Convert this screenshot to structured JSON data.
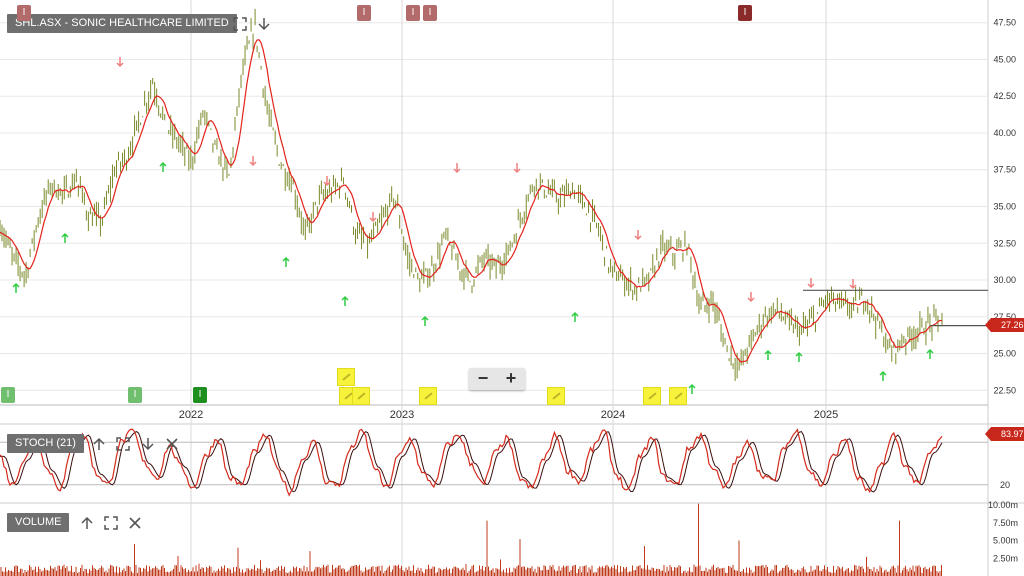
{
  "colors": {
    "candle": "#7a8a2a",
    "ma_line": "#e3231b",
    "stoch_k": "#d32a1b",
    "stoch_d": "#3a1010",
    "volume": "#c0391b",
    "grid": "#e8e8e8",
    "signal_up": "#2ecc40",
    "signal_down": "#f08080"
  },
  "main": {
    "title": "SHL.ASX - SONIC HEALTHCARE LIMITED",
    "price_label": "27.26",
    "zoom_out": "−",
    "zoom_in": "+",
    "marker_text": "I",
    "icons": [
      "expand-icon",
      "download-arrow-icon"
    ]
  },
  "stoch": {
    "title": "STOCH (21)",
    "value_label": "83.97",
    "level_label": "20",
    "icons": [
      "up-arrow-icon",
      "expand-icon",
      "down-arrow-icon",
      "close-icon"
    ]
  },
  "volume": {
    "title": "VOLUME",
    "icons": [
      "up-arrow-icon",
      "expand-icon",
      "close-icon"
    ]
  },
  "chart_data": [
    {
      "type": "line",
      "title": "SHL.ASX - SONIC HEALTHCARE LIMITED",
      "x_ticks": [
        "2022",
        "2023",
        "2024",
        "2025"
      ],
      "y_ticks": [
        "47.50",
        "45.00",
        "42.50",
        "40.00",
        "37.50",
        "35.00",
        "32.50",
        "30.00",
        "27.50",
        "25.00",
        "22.50"
      ],
      "ylim": [
        21.5,
        48.5
      ],
      "series": [
        {
          "values": [
            33.8,
            31.5,
            30.3,
            34.2,
            36.5,
            35.8,
            36.9,
            34.3,
            34.0,
            37.5,
            38.5,
            41.0,
            43.5,
            40.5,
            39.4,
            38.0,
            41.5,
            38.6,
            37.0,
            44.0,
            47.4,
            41.5,
            38.0,
            36.5,
            33.0,
            35.5,
            36.0,
            36.8,
            33.0,
            32.4,
            34.0,
            35.8,
            31.5,
            29.8,
            30.8,
            33.0,
            31.0,
            29.9,
            31.5,
            30.8,
            32.0,
            34.5,
            36.8,
            36.0,
            35.5,
            36.2,
            35.0,
            33.5,
            30.6,
            30.0,
            29.4,
            30.0,
            32.2,
            31.8,
            32.4,
            28.0,
            28.6,
            25.5,
            24.0,
            25.8,
            27.5,
            28.0,
            27.0,
            26.5,
            27.4,
            28.8,
            28.3,
            28.1,
            28.8,
            27.0,
            25.0,
            26.0,
            26.5,
            27.0,
            27.26
          ],
          "grid": true
        }
      ],
      "annotations": {
        "price_label": "27.26"
      }
    },
    {
      "type": "line",
      "title": "STOCH (21)",
      "y_ticks": [
        "20"
      ],
      "ylim": [
        0,
        100
      ],
      "series": [
        {
          "values": [
            60,
            20,
            55,
            85,
            40,
            15,
            70,
            90,
            35,
            20,
            80,
            95,
            50,
            30,
            75,
            45,
            15,
            60,
            85,
            30,
            20,
            65,
            90,
            40,
            10,
            55,
            80,
            25,
            20,
            70,
            95,
            45,
            15,
            60,
            85,
            35,
            20,
            75,
            90,
            50,
            20,
            65,
            85,
            30,
            15,
            55,
            90,
            40,
            25,
            70,
            95,
            35,
            10,
            60,
            85,
            30,
            20,
            70,
            90,
            45,
            15,
            55,
            80,
            35,
            25,
            75,
            95,
            40,
            20,
            60,
            85,
            30,
            10,
            50,
            90,
            45,
            20,
            65,
            84
          ]
        }
      ],
      "annotations": {
        "value_label": "83.97"
      }
    },
    {
      "type": "bar",
      "title": "VOLUME",
      "y_ticks": [
        "10.00m",
        "7.50m",
        "5.00m",
        "2.50m"
      ],
      "ylim": [
        0,
        10
      ],
      "note": ""
    }
  ]
}
